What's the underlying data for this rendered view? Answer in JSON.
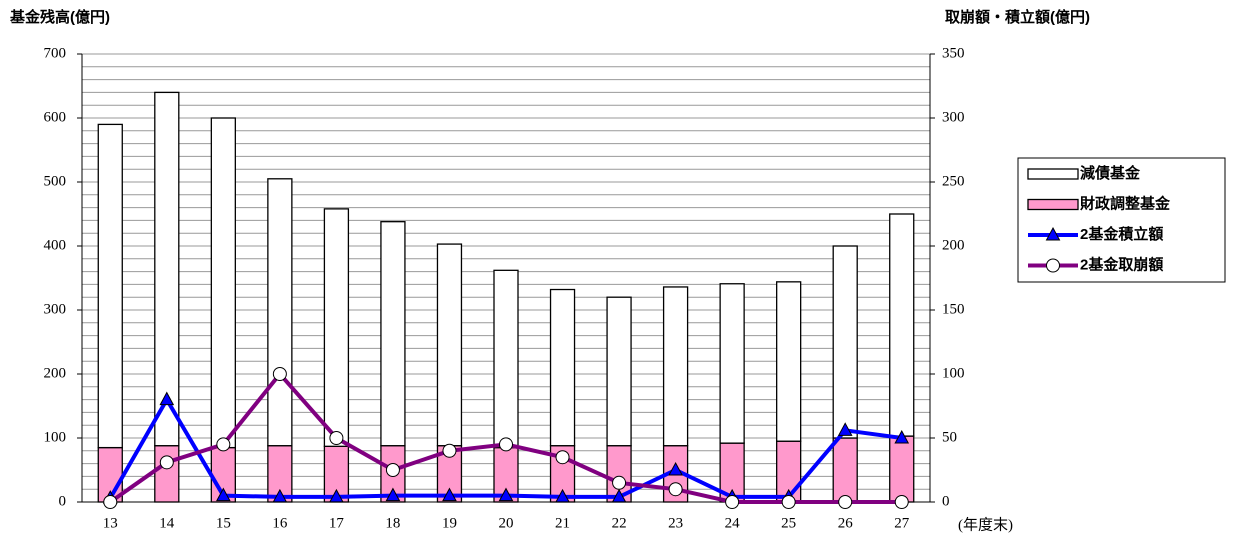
{
  "chart_data": {
    "type": "bar",
    "y_label": "基金残高(億円)",
    "y2_label": "取崩額・積立額(億円)",
    "x_label": "(年度末)",
    "categories": [
      "13",
      "14",
      "15",
      "16",
      "17",
      "18",
      "19",
      "20",
      "21",
      "22",
      "23",
      "24",
      "25",
      "26",
      "27"
    ],
    "series": [
      {
        "name": "減債基金",
        "type": "bar",
        "color": "#ffffff",
        "values": [
          505,
          552,
          515,
          417,
          371,
          350,
          315,
          277,
          244,
          232,
          248,
          249,
          249,
          300,
          347
        ]
      },
      {
        "name": "財政調整基金",
        "type": "bar",
        "color": "#ff99cc",
        "values": [
          85,
          88,
          85,
          88,
          87,
          88,
          88,
          85,
          88,
          88,
          88,
          92,
          95,
          100,
          103
        ]
      },
      {
        "name": "2基金積立額",
        "type": "line",
        "marker": "triangle",
        "axis": "y2",
        "color": "#0000ff",
        "values": [
          3,
          80,
          5,
          4,
          4,
          5,
          5,
          5,
          4,
          4,
          25,
          4,
          4,
          56,
          50
        ]
      },
      {
        "name": "2基金取崩額",
        "type": "line",
        "marker": "circle",
        "axis": "y2",
        "color": "#800080",
        "values": [
          0,
          31,
          45,
          100,
          50,
          25,
          40,
          45,
          35,
          15,
          10,
          0,
          0,
          0,
          0
        ]
      }
    ],
    "ylim": [
      0,
      700
    ],
    "yticks": [
      0,
      100,
      200,
      300,
      400,
      500,
      600,
      700
    ],
    "y2lim": [
      0,
      350
    ],
    "y2ticks": [
      0,
      50,
      100,
      150,
      200,
      250,
      300,
      350
    ],
    "grid": [
      0,
      20,
      40,
      60,
      80,
      100,
      120,
      140,
      160,
      180,
      200,
      220,
      240,
      260,
      280,
      300,
      320,
      340,
      360,
      380,
      400,
      420,
      440,
      460,
      480,
      500,
      520,
      540,
      560,
      580,
      600,
      620,
      640,
      660,
      680,
      700
    ],
    "legend": "right"
  }
}
